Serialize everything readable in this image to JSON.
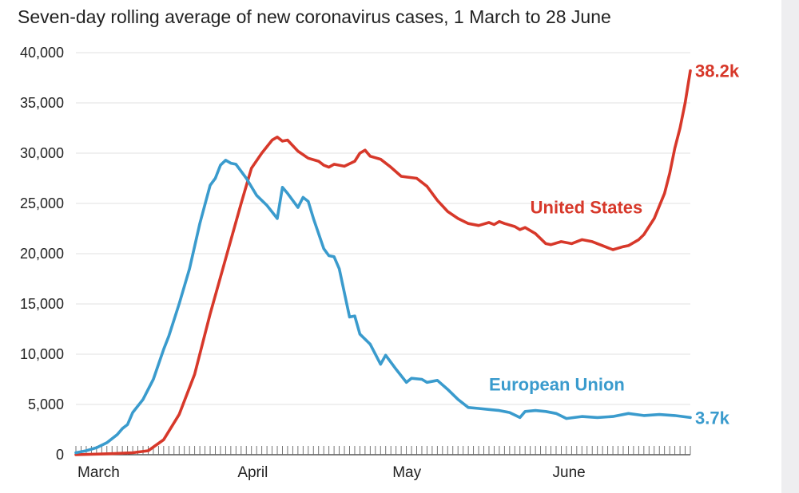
{
  "chart_data": {
    "type": "line",
    "title": "Seven-day rolling average of new coronavirus cases, 1 March to 28 June",
    "xlabel": "",
    "ylabel": "",
    "ylim": [
      0,
      40000
    ],
    "yticks": [
      0,
      5000,
      10000,
      15000,
      20000,
      25000,
      30000,
      35000,
      40000
    ],
    "ytick_labels": [
      "0",
      "5,000",
      "10,000",
      "15,000",
      "20,000",
      "25,000",
      "30,000",
      "35,000",
      "40,000"
    ],
    "x_range": [
      "2020-03-01",
      "2020-06-28"
    ],
    "x_month_labels": [
      {
        "date": "2020-03-01",
        "label": "March"
      },
      {
        "date": "2020-04-01",
        "label": "April"
      },
      {
        "date": "2020-05-01",
        "label": "May"
      },
      {
        "date": "2020-06-01",
        "label": "June"
      }
    ],
    "grid": true,
    "series": [
      {
        "name": "United States",
        "color": "#d7382a",
        "end_label": "38.2k",
        "points": [
          [
            "2020-03-01",
            0
          ],
          [
            "2020-03-08",
            100
          ],
          [
            "2020-03-12",
            200
          ],
          [
            "2020-03-15",
            400
          ],
          [
            "2020-03-18",
            1500
          ],
          [
            "2020-03-21",
            4000
          ],
          [
            "2020-03-24",
            8000
          ],
          [
            "2020-03-27",
            14000
          ],
          [
            "2020-03-30",
            19500
          ],
          [
            "2020-04-02",
            25000
          ],
          [
            "2020-04-04",
            28500
          ],
          [
            "2020-04-06",
            30000
          ],
          [
            "2020-04-08",
            31300
          ],
          [
            "2020-04-09",
            31600
          ],
          [
            "2020-04-10",
            31200
          ],
          [
            "2020-04-11",
            31300
          ],
          [
            "2020-04-13",
            30200
          ],
          [
            "2020-04-15",
            29500
          ],
          [
            "2020-04-17",
            29200
          ],
          [
            "2020-04-18",
            28800
          ],
          [
            "2020-04-19",
            28600
          ],
          [
            "2020-04-20",
            28900
          ],
          [
            "2020-04-22",
            28700
          ],
          [
            "2020-04-24",
            29200
          ],
          [
            "2020-04-25",
            30000
          ],
          [
            "2020-04-26",
            30300
          ],
          [
            "2020-04-27",
            29700
          ],
          [
            "2020-04-29",
            29400
          ],
          [
            "2020-05-01",
            28600
          ],
          [
            "2020-05-03",
            27700
          ],
          [
            "2020-05-06",
            27500
          ],
          [
            "2020-05-08",
            26700
          ],
          [
            "2020-05-10",
            25300
          ],
          [
            "2020-05-12",
            24200
          ],
          [
            "2020-05-14",
            23500
          ],
          [
            "2020-05-16",
            23000
          ],
          [
            "2020-05-18",
            22800
          ],
          [
            "2020-05-20",
            23100
          ],
          [
            "2020-05-21",
            22900
          ],
          [
            "2020-05-22",
            23200
          ],
          [
            "2020-05-23",
            23000
          ],
          [
            "2020-05-25",
            22700
          ],
          [
            "2020-05-26",
            22400
          ],
          [
            "2020-05-27",
            22600
          ],
          [
            "2020-05-29",
            22000
          ],
          [
            "2020-05-31",
            21000
          ],
          [
            "2020-06-01",
            20900
          ],
          [
            "2020-06-03",
            21200
          ],
          [
            "2020-06-05",
            21000
          ],
          [
            "2020-06-07",
            21400
          ],
          [
            "2020-06-09",
            21200
          ],
          [
            "2020-06-11",
            20800
          ],
          [
            "2020-06-13",
            20400
          ],
          [
            "2020-06-15",
            20700
          ],
          [
            "2020-06-16",
            20800
          ],
          [
            "2020-06-18",
            21400
          ],
          [
            "2020-06-19",
            21900
          ],
          [
            "2020-06-21",
            23500
          ],
          [
            "2020-06-23",
            26000
          ],
          [
            "2020-06-24",
            28000
          ],
          [
            "2020-06-25",
            30500
          ],
          [
            "2020-06-26",
            32500
          ],
          [
            "2020-06-27",
            35000
          ],
          [
            "2020-06-28",
            38200
          ]
        ]
      },
      {
        "name": "European Union",
        "color": "#3a9bcd",
        "end_label": "3.7k",
        "points": [
          [
            "2020-03-01",
            200
          ],
          [
            "2020-03-03",
            400
          ],
          [
            "2020-03-05",
            700
          ],
          [
            "2020-03-07",
            1200
          ],
          [
            "2020-03-09",
            2000
          ],
          [
            "2020-03-10",
            2600
          ],
          [
            "2020-03-11",
            3000
          ],
          [
            "2020-03-12",
            4200
          ],
          [
            "2020-03-14",
            5500
          ],
          [
            "2020-03-16",
            7500
          ],
          [
            "2020-03-18",
            10500
          ],
          [
            "2020-03-19",
            11800
          ],
          [
            "2020-03-21",
            15000
          ],
          [
            "2020-03-23",
            18500
          ],
          [
            "2020-03-25",
            23000
          ],
          [
            "2020-03-27",
            26800
          ],
          [
            "2020-03-28",
            27500
          ],
          [
            "2020-03-29",
            28800
          ],
          [
            "2020-03-30",
            29300
          ],
          [
            "2020-03-31",
            29000
          ],
          [
            "2020-04-01",
            28900
          ],
          [
            "2020-04-03",
            27500
          ],
          [
            "2020-04-05",
            25800
          ],
          [
            "2020-04-07",
            24800
          ],
          [
            "2020-04-09",
            23500
          ],
          [
            "2020-04-10",
            26600
          ],
          [
            "2020-04-11",
            26000
          ],
          [
            "2020-04-13",
            24600
          ],
          [
            "2020-04-14",
            25600
          ],
          [
            "2020-04-15",
            25200
          ],
          [
            "2020-04-16",
            23500
          ],
          [
            "2020-04-18",
            20500
          ],
          [
            "2020-04-19",
            19800
          ],
          [
            "2020-04-20",
            19700
          ],
          [
            "2020-04-21",
            18500
          ],
          [
            "2020-04-23",
            13700
          ],
          [
            "2020-04-24",
            13800
          ],
          [
            "2020-04-25",
            12000
          ],
          [
            "2020-04-27",
            11000
          ],
          [
            "2020-04-29",
            9000
          ],
          [
            "2020-04-30",
            9900
          ],
          [
            "2020-05-02",
            8500
          ],
          [
            "2020-05-04",
            7200
          ],
          [
            "2020-05-05",
            7600
          ],
          [
            "2020-05-07",
            7500
          ],
          [
            "2020-05-08",
            7200
          ],
          [
            "2020-05-10",
            7400
          ],
          [
            "2020-05-12",
            6500
          ],
          [
            "2020-05-14",
            5500
          ],
          [
            "2020-05-16",
            4700
          ],
          [
            "2020-05-18",
            4600
          ],
          [
            "2020-05-20",
            4500
          ],
          [
            "2020-05-22",
            4400
          ],
          [
            "2020-05-24",
            4200
          ],
          [
            "2020-05-26",
            3700
          ],
          [
            "2020-05-27",
            4300
          ],
          [
            "2020-05-29",
            4400
          ],
          [
            "2020-05-31",
            4300
          ],
          [
            "2020-06-02",
            4100
          ],
          [
            "2020-06-04",
            3600
          ],
          [
            "2020-06-07",
            3800
          ],
          [
            "2020-06-10",
            3700
          ],
          [
            "2020-06-13",
            3800
          ],
          [
            "2020-06-16",
            4100
          ],
          [
            "2020-06-19",
            3900
          ],
          [
            "2020-06-22",
            4000
          ],
          [
            "2020-06-25",
            3900
          ],
          [
            "2020-06-28",
            3700
          ]
        ]
      }
    ]
  }
}
